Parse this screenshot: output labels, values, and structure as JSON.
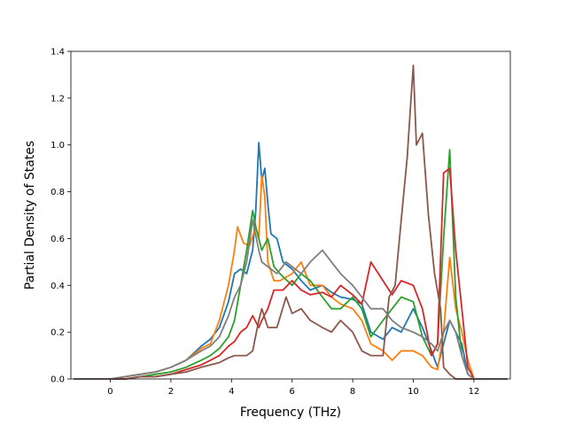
{
  "chart_data": {
    "type": "line",
    "title": "",
    "xlabel": "Frequency (THz)",
    "ylabel": "Partial Density of States",
    "xlim": [
      -1.3,
      13.2
    ],
    "ylim": [
      0.0,
      1.4
    ],
    "xticks": [
      0,
      2,
      4,
      6,
      8,
      10,
      12
    ],
    "xtick_labels": [
      "0",
      "2",
      "4",
      "6",
      "8",
      "10",
      "12"
    ],
    "yticks": [
      0.0,
      0.2,
      0.4,
      0.6,
      0.8,
      1.0,
      1.2,
      1.4
    ],
    "ytick_labels": [
      "0.0",
      "0.2",
      "0.4",
      "0.6",
      "0.8",
      "1.0",
      "1.2",
      "1.4"
    ],
    "grid": false,
    "series": [
      {
        "color": "#1f77b4",
        "x": [
          -1.2,
          0,
          0.5,
          1,
          1.5,
          2,
          2.5,
          3,
          3.3,
          3.6,
          3.9,
          4.1,
          4.3,
          4.5,
          4.7,
          4.8,
          4.9,
          5.0,
          5.1,
          5.2,
          5.3,
          5.5,
          5.7,
          6.0,
          6.3,
          6.6,
          7.0,
          7.3,
          7.6,
          8.0,
          8.3,
          8.6,
          9.0,
          9.3,
          9.6,
          10.0,
          10.3,
          10.6,
          10.8,
          11.0,
          11.2,
          11.4,
          11.6,
          11.8,
          12.0,
          13.1
        ],
        "y": [
          0,
          0,
          0.01,
          0.02,
          0.03,
          0.05,
          0.08,
          0.14,
          0.17,
          0.22,
          0.33,
          0.45,
          0.47,
          0.45,
          0.55,
          0.72,
          1.01,
          0.85,
          0.9,
          0.75,
          0.62,
          0.6,
          0.5,
          0.47,
          0.42,
          0.38,
          0.4,
          0.37,
          0.35,
          0.34,
          0.32,
          0.2,
          0.17,
          0.22,
          0.2,
          0.3,
          0.22,
          0.12,
          0.05,
          0.15,
          0.25,
          0.2,
          0.15,
          0.02,
          0,
          0
        ]
      },
      {
        "color": "#ff7f0e",
        "x": [
          -1.2,
          0,
          0.5,
          1,
          1.5,
          2,
          2.5,
          3,
          3.3,
          3.6,
          3.9,
          4.1,
          4.2,
          4.4,
          4.6,
          4.8,
          4.9,
          5.0,
          5.1,
          5.2,
          5.4,
          5.6,
          6.0,
          6.3,
          6.6,
          7.0,
          7.3,
          7.6,
          8.0,
          8.3,
          8.6,
          9.0,
          9.3,
          9.6,
          10.0,
          10.3,
          10.6,
          10.8,
          11.0,
          11.2,
          11.4,
          11.6,
          11.8,
          12.0,
          13.1
        ],
        "y": [
          0,
          0,
          0.01,
          0.02,
          0.03,
          0.05,
          0.08,
          0.13,
          0.15,
          0.25,
          0.4,
          0.55,
          0.65,
          0.58,
          0.57,
          0.65,
          0.6,
          0.87,
          0.78,
          0.5,
          0.42,
          0.42,
          0.45,
          0.5,
          0.4,
          0.4,
          0.35,
          0.32,
          0.3,
          0.25,
          0.15,
          0.12,
          0.08,
          0.12,
          0.12,
          0.1,
          0.05,
          0.04,
          0.2,
          0.52,
          0.3,
          0.2,
          0.08,
          0,
          0
        ]
      },
      {
        "color": "#2ca02c",
        "x": [
          -1.2,
          0,
          0.5,
          1,
          1.5,
          2,
          2.5,
          3,
          3.3,
          3.6,
          3.9,
          4.1,
          4.3,
          4.5,
          4.7,
          4.8,
          5.0,
          5.2,
          5.4,
          5.6,
          6.0,
          6.3,
          6.6,
          7.0,
          7.3,
          7.6,
          8.0,
          8.3,
          8.6,
          9.0,
          9.3,
          9.6,
          10.0,
          10.3,
          10.6,
          10.8,
          11.0,
          11.2,
          11.4,
          11.6,
          11.8,
          12.0,
          13.1
        ],
        "y": [
          0,
          0,
          0,
          0.01,
          0.02,
          0.03,
          0.05,
          0.08,
          0.1,
          0.13,
          0.18,
          0.25,
          0.4,
          0.55,
          0.72,
          0.65,
          0.55,
          0.6,
          0.48,
          0.45,
          0.4,
          0.45,
          0.42,
          0.35,
          0.3,
          0.3,
          0.35,
          0.3,
          0.18,
          0.25,
          0.3,
          0.35,
          0.33,
          0.18,
          0.1,
          0.15,
          0.6,
          0.98,
          0.35,
          0.1,
          0.02,
          0,
          0
        ]
      },
      {
        "color": "#d62728",
        "x": [
          -1.2,
          0,
          0.5,
          1,
          1.5,
          2,
          2.5,
          3,
          3.3,
          3.6,
          3.9,
          4.1,
          4.3,
          4.5,
          4.7,
          4.9,
          5.0,
          5.2,
          5.4,
          5.7,
          6.0,
          6.3,
          6.6,
          7.0,
          7.3,
          7.6,
          8.0,
          8.3,
          8.6,
          9.0,
          9.3,
          9.6,
          10.0,
          10.3,
          10.6,
          10.8,
          11.0,
          11.2,
          11.4,
          11.6,
          11.8,
          12.0,
          13.1
        ],
        "y": [
          0,
          0,
          0,
          0.01,
          0.01,
          0.02,
          0.04,
          0.06,
          0.08,
          0.1,
          0.14,
          0.16,
          0.2,
          0.22,
          0.27,
          0.22,
          0.25,
          0.3,
          0.38,
          0.38,
          0.42,
          0.38,
          0.36,
          0.37,
          0.35,
          0.4,
          0.36,
          0.32,
          0.5,
          0.42,
          0.36,
          0.42,
          0.4,
          0.3,
          0.1,
          0.15,
          0.88,
          0.9,
          0.55,
          0.3,
          0.05,
          0,
          0
        ]
      },
      {
        "color": "#8c564b",
        "x": [
          -1.2,
          0,
          0.5,
          1,
          1.5,
          2,
          2.5,
          3,
          3.3,
          3.6,
          3.9,
          4.1,
          4.3,
          4.5,
          4.7,
          4.9,
          5.0,
          5.2,
          5.5,
          5.8,
          6.0,
          6.3,
          6.6,
          7.0,
          7.3,
          7.6,
          8.0,
          8.3,
          8.6,
          9.0,
          9.2,
          9.4,
          9.6,
          9.8,
          9.9,
          10.0,
          10.1,
          10.3,
          10.5,
          10.7,
          10.9,
          11.0,
          11.2,
          11.4,
          11.6,
          11.8,
          12.0,
          13.1
        ],
        "y": [
          0,
          0,
          0,
          0.01,
          0.01,
          0.02,
          0.03,
          0.05,
          0.06,
          0.07,
          0.09,
          0.1,
          0.1,
          0.1,
          0.12,
          0.25,
          0.3,
          0.22,
          0.22,
          0.35,
          0.28,
          0.3,
          0.25,
          0.22,
          0.2,
          0.25,
          0.2,
          0.12,
          0.1,
          0.1,
          0.35,
          0.4,
          0.68,
          0.95,
          1.15,
          1.34,
          1.0,
          1.05,
          0.7,
          0.45,
          0.3,
          0.05,
          0.02,
          0,
          0,
          0,
          0,
          0
        ]
      },
      {
        "color": "#7f7f7f",
        "x": [
          -1.2,
          0,
          0.5,
          1,
          1.5,
          2,
          2.5,
          3,
          3.3,
          3.6,
          3.9,
          4.1,
          4.3,
          4.5,
          4.7,
          4.9,
          5.0,
          5.2,
          5.5,
          5.8,
          6.0,
          6.3,
          6.6,
          7.0,
          7.3,
          7.6,
          8.0,
          8.3,
          8.6,
          9.0,
          9.3,
          9.6,
          10.0,
          10.3,
          10.6,
          10.8,
          11.0,
          11.2,
          11.4,
          11.6,
          11.8,
          12.0,
          13.1
        ],
        "y": [
          0,
          0,
          0.01,
          0.02,
          0.03,
          0.05,
          0.08,
          0.12,
          0.14,
          0.18,
          0.27,
          0.35,
          0.4,
          0.5,
          0.68,
          0.55,
          0.5,
          0.48,
          0.45,
          0.5,
          0.48,
          0.45,
          0.5,
          0.55,
          0.5,
          0.45,
          0.4,
          0.35,
          0.3,
          0.3,
          0.25,
          0.22,
          0.2,
          0.18,
          0.15,
          0.12,
          0.2,
          0.25,
          0.2,
          0.1,
          0.02,
          0,
          0
        ]
      }
    ]
  }
}
